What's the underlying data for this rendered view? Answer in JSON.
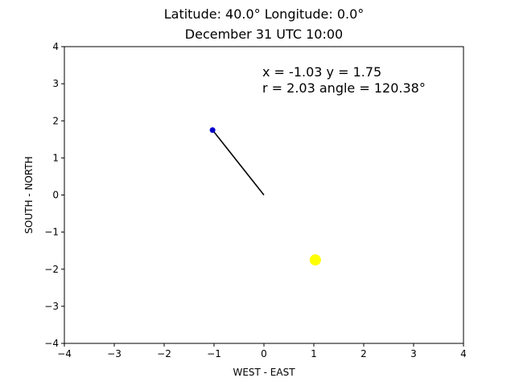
{
  "chart_data": {
    "type": "scatter",
    "title": "Latitude: 40.0° Longitude: 0.0°",
    "subtitle": "December 31 UTC 10:00",
    "xlabel": "WEST - EAST",
    "ylabel": "SOUTH - NORTH",
    "xlim": [
      -4,
      4
    ],
    "ylim": [
      -4,
      4
    ],
    "xticks": [
      "−4",
      "−3",
      "−2",
      "−1",
      "0",
      "1",
      "2",
      "3",
      "4"
    ],
    "yticks": [
      "−4",
      "−3",
      "−2",
      "−1",
      "0",
      "1",
      "2",
      "3",
      "4"
    ],
    "grid": false,
    "annotations": [
      "x = -1.03 y = 1.75",
      "r = 2.03 angle = 120.38°"
    ],
    "vector": {
      "from": [
        0,
        0
      ],
      "to": [
        -1.03,
        1.75
      ],
      "color": "#000000"
    },
    "points": [
      {
        "x": -1.03,
        "y": 1.75,
        "color": "#0000cc"
      },
      {
        "x": 1.03,
        "y": -1.75,
        "color": "#ffff00"
      }
    ]
  }
}
